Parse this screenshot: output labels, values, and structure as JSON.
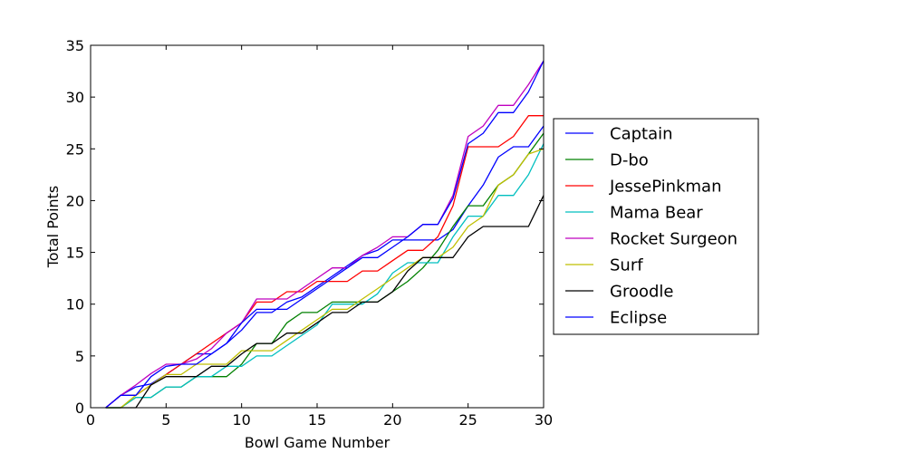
{
  "chart_data": {
    "type": "line",
    "xlabel": "Bowl Game Number",
    "ylabel": "Total Points",
    "xlim": [
      0,
      30
    ],
    "ylim": [
      0,
      35
    ],
    "xticks": [
      0,
      5,
      10,
      15,
      20,
      25,
      30
    ],
    "yticks": [
      0,
      5,
      10,
      15,
      20,
      25,
      30,
      35
    ],
    "grid": false,
    "legend_position": "right",
    "x": [
      1,
      2,
      3,
      4,
      5,
      6,
      7,
      8,
      9,
      10,
      11,
      12,
      13,
      14,
      15,
      16,
      17,
      18,
      19,
      20,
      21,
      22,
      23,
      24,
      25,
      26,
      27,
      28,
      29,
      30
    ],
    "series": [
      {
        "name": "Captain",
        "color": "#0000ff",
        "values": [
          0,
          1.2,
          2,
          2.3,
          3.2,
          4.2,
          5.2,
          5.2,
          6.2,
          7.5,
          9.2,
          9.2,
          10.2,
          10.7,
          11.7,
          12.7,
          13.7,
          14.7,
          15.2,
          16.2,
          16.2,
          16.2,
          16.2,
          17.2,
          19.5,
          21.5,
          24.2,
          25.2,
          25.2,
          27.2
        ]
      },
      {
        "name": "D-bo",
        "color": "#008000",
        "values": [
          0,
          0,
          1,
          1,
          2,
          2,
          3,
          3,
          3,
          4.2,
          6.2,
          6.2,
          8.2,
          9.2,
          9.2,
          10.2,
          10.2,
          10.2,
          10.2,
          11.2,
          12.2,
          13.5,
          15.2,
          17.5,
          19.5,
          19.5,
          21.5,
          22.5,
          24.5,
          26.5
        ]
      },
      {
        "name": "JessePinkman",
        "color": "#ff0000",
        "values": [
          0,
          1.2,
          1.2,
          2.2,
          3.2,
          4.2,
          5.2,
          6.2,
          7.2,
          8.2,
          10.2,
          10.2,
          11.2,
          11.2,
          12.2,
          12.2,
          12.2,
          13.2,
          13.2,
          14.2,
          15.2,
          15.2,
          16.5,
          19.5,
          25.2,
          25.2,
          25.2,
          26.2,
          28.2,
          28.2
        ]
      },
      {
        "name": "Mama Bear",
        "color": "#00bfbf",
        "values": [
          0,
          0,
          1,
          1,
          2,
          2,
          3,
          3,
          4,
          4,
          5,
          5,
          6,
          7,
          8,
          10,
          10,
          10,
          11,
          13,
          14,
          14,
          14,
          16.5,
          18.5,
          18.5,
          20.5,
          20.5,
          22.5,
          25.5
        ]
      },
      {
        "name": "Rocket Surgeon",
        "color": "#bf00bf",
        "values": [
          0,
          1.2,
          2.2,
          3.3,
          4.2,
          4.2,
          4.7,
          5.7,
          7.2,
          8.2,
          10.5,
          10.5,
          10.5,
          11.5,
          12.5,
          13.5,
          13.5,
          14.7,
          15.5,
          16.5,
          16.5,
          17.7,
          17.7,
          20.5,
          26.2,
          27.2,
          29.2,
          29.2,
          31.2,
          33.5
        ]
      },
      {
        "name": "Surf",
        "color": "#bfbf00",
        "values": [
          0,
          0,
          1.2,
          2.2,
          3.2,
          3.2,
          4.2,
          4.2,
          4.2,
          5.5,
          5.5,
          5.5,
          6.5,
          7.5,
          8.5,
          9.5,
          9.5,
          10.5,
          11.5,
          12.5,
          13.5,
          14.5,
          14.5,
          15.5,
          17.5,
          18.5,
          21.5,
          22.5,
          24.5,
          25
        ]
      },
      {
        "name": "Groodle",
        "color": "#000000",
        "values": [
          0,
          0,
          0,
          2.2,
          3,
          3,
          3,
          4,
          4,
          5.2,
          6.2,
          6.2,
          7.2,
          7.2,
          8.2,
          9.2,
          9.2,
          10.2,
          10.2,
          11.2,
          13.2,
          14.5,
          14.5,
          14.5,
          16.5,
          17.5,
          17.5,
          17.5,
          17.5,
          20.5
        ]
      },
      {
        "name": "Eclipse",
        "color": "#0000ff",
        "values": [
          0,
          1.2,
          1.2,
          3,
          4,
          4.2,
          4.2,
          5.2,
          6.2,
          8.2,
          9.5,
          9.5,
          9.5,
          10.5,
          11.5,
          12.5,
          13.5,
          14.5,
          14.5,
          15.5,
          16.5,
          17.7,
          17.7,
          20.2,
          25.5,
          26.5,
          28.5,
          28.5,
          30.5,
          33.5
        ]
      }
    ]
  }
}
